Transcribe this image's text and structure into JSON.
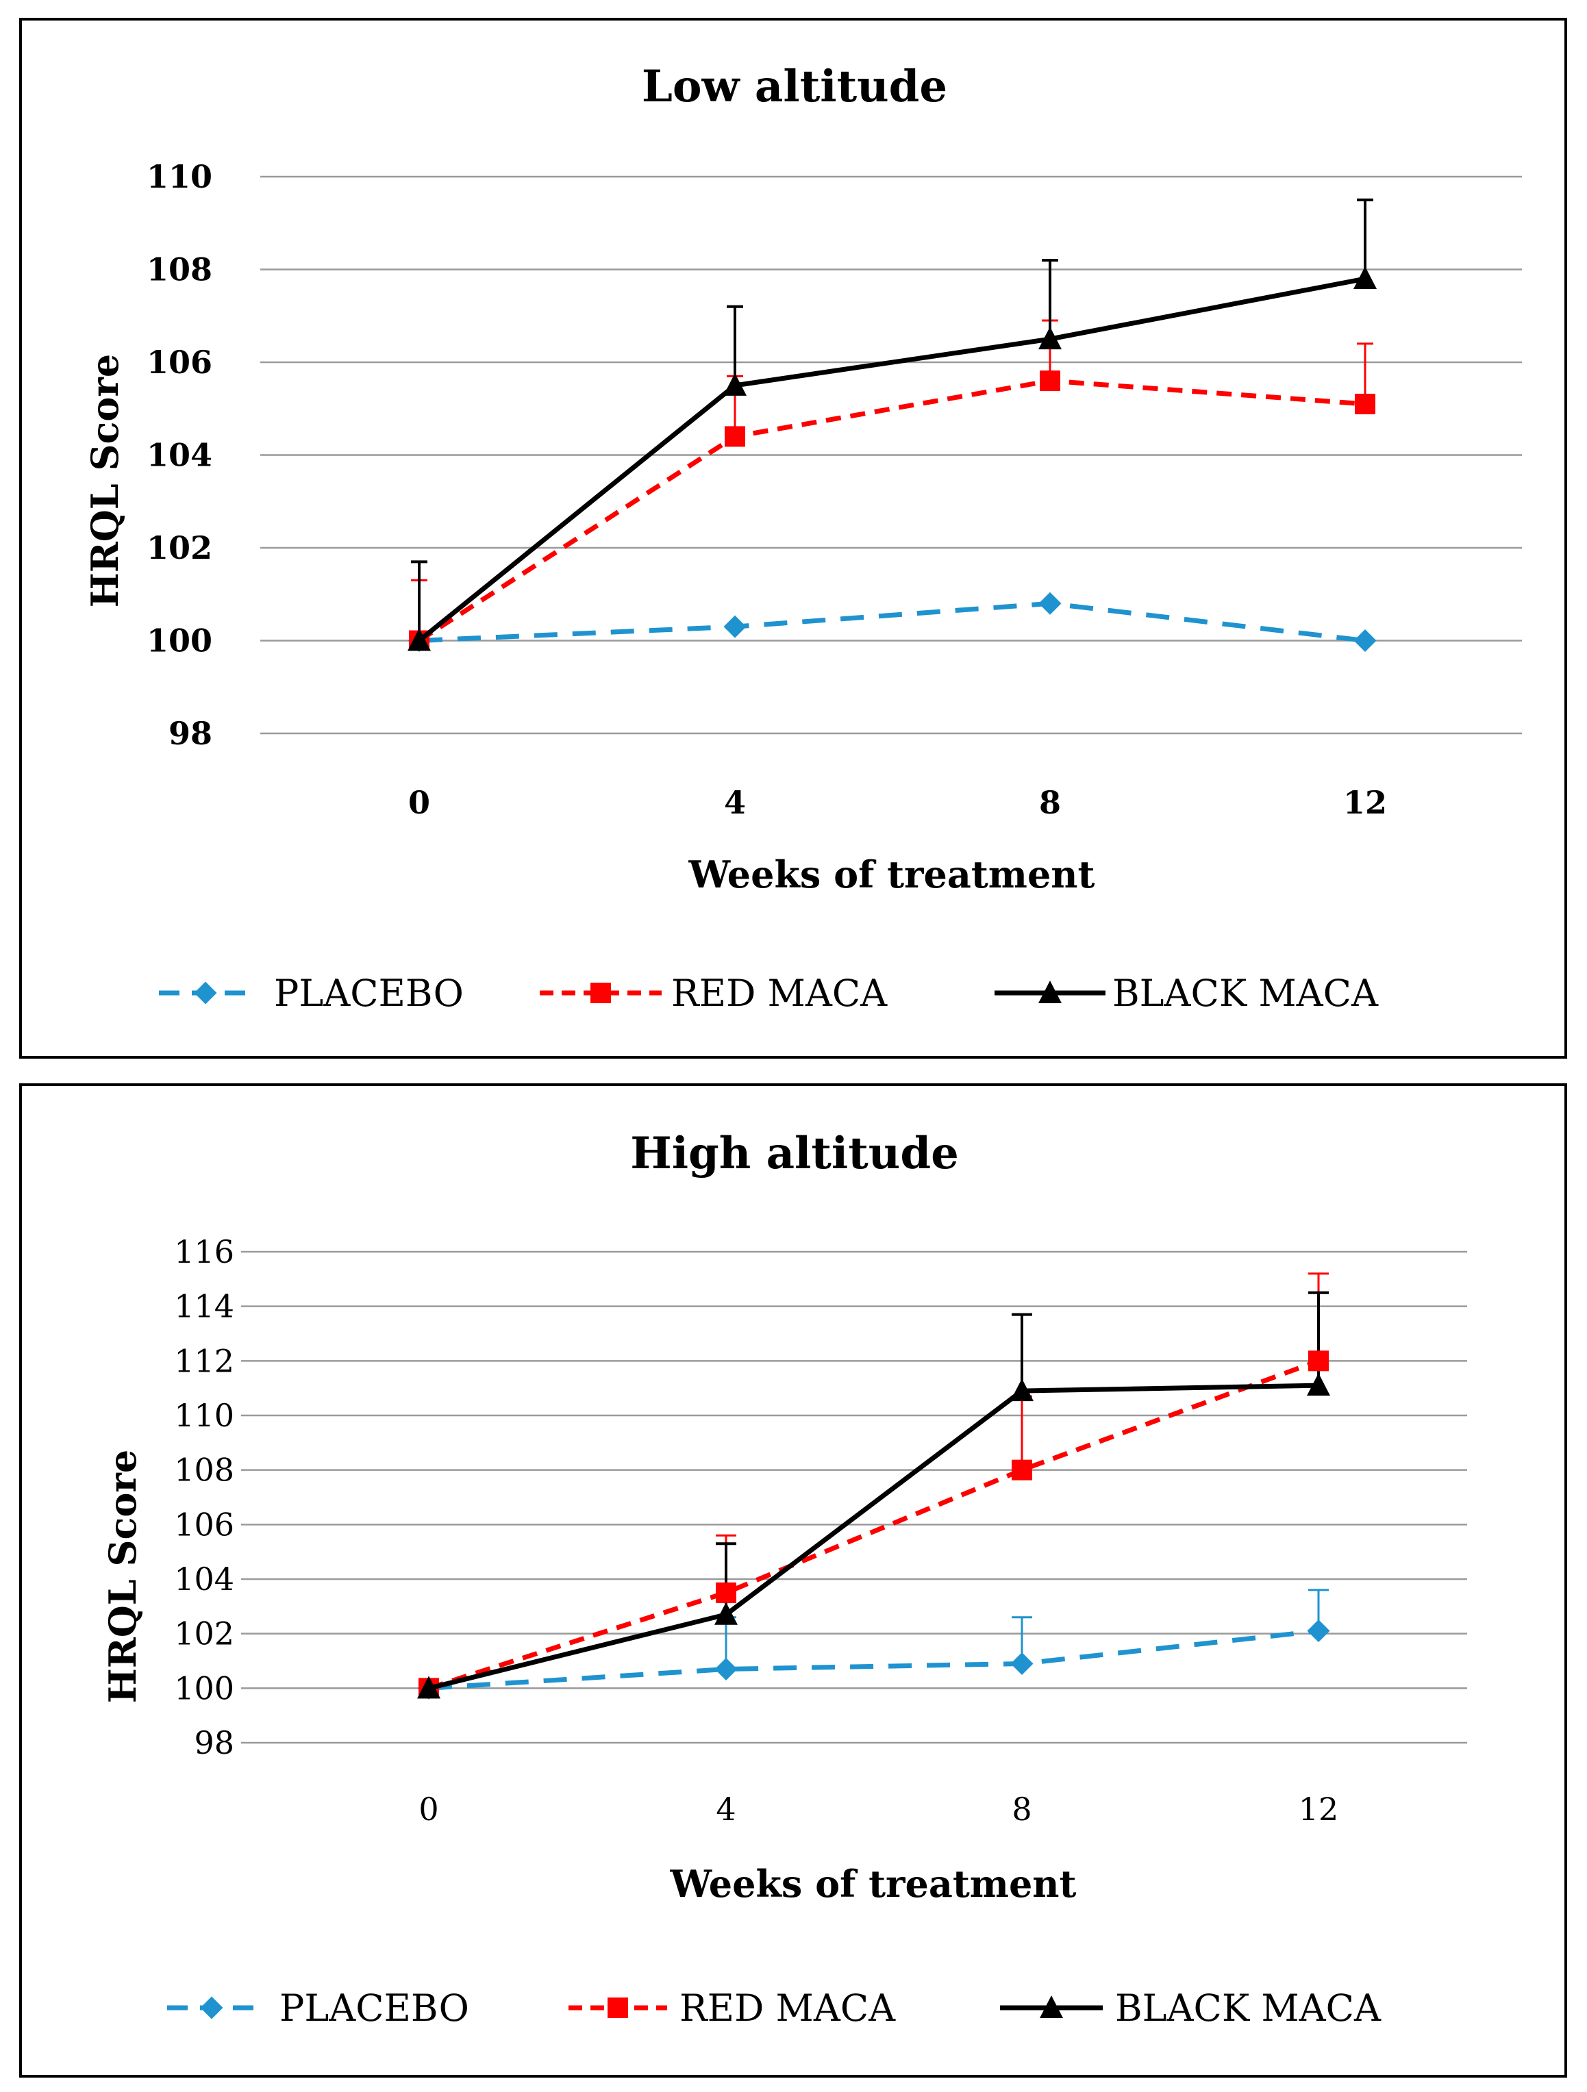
{
  "chart_data": [
    {
      "type": "line",
      "title": "Low altitude",
      "xlabel": "Weeks of treatment",
      "ylabel": "HRQL Score",
      "categories": [
        "0",
        "4",
        "8",
        "12"
      ],
      "ylim": [
        98,
        110
      ],
      "yticks": [
        98,
        100,
        102,
        104,
        106,
        108,
        110
      ],
      "grid": true,
      "legend_position": "bottom",
      "series": [
        {
          "name": "PLACEBO",
          "color": "#1f93cf",
          "marker": "diamond",
          "dash": "dashed",
          "values": [
            100,
            100.3,
            100.8,
            100
          ],
          "errors": [
            0,
            0,
            0,
            0
          ]
        },
        {
          "name": "RED MACA",
          "color": "#ff0000",
          "marker": "square",
          "dash": "dashed",
          "values": [
            100,
            104.4,
            105.6,
            105.1
          ],
          "errors": [
            1.3,
            1.3,
            1.3,
            1.3
          ]
        },
        {
          "name": "BLACK MACA",
          "color": "#000000",
          "marker": "triangle",
          "dash": "solid",
          "values": [
            100,
            105.5,
            106.5,
            107.8
          ],
          "errors": [
            1.7,
            1.7,
            1.7,
            1.7
          ]
        }
      ]
    },
    {
      "type": "line",
      "title": "High altitude",
      "xlabel": "Weeks of treatment",
      "ylabel": "HRQL Score",
      "categories": [
        "0",
        "4",
        "8",
        "12"
      ],
      "ylim": [
        98,
        116
      ],
      "yticks": [
        98,
        100,
        102,
        104,
        106,
        108,
        110,
        112,
        114,
        116
      ],
      "grid": true,
      "legend_position": "bottom",
      "series": [
        {
          "name": "PLACEBO",
          "color": "#1f93cf",
          "marker": "diamond",
          "dash": "dashed",
          "values": [
            100,
            100.7,
            100.9,
            102.1
          ],
          "errors": [
            0,
            1.9,
            1.7,
            1.5
          ]
        },
        {
          "name": "RED MACA",
          "color": "#ff0000",
          "marker": "square",
          "dash": "dashed",
          "values": [
            100,
            103.5,
            108,
            112
          ],
          "errors": [
            0,
            2.1,
            2.7,
            3.2
          ]
        },
        {
          "name": "BLACK MACA",
          "color": "#000000",
          "marker": "triangle",
          "dash": "solid",
          "values": [
            100,
            102.7,
            110.9,
            111.1
          ],
          "errors": [
            0,
            2.6,
            2.8,
            3.4
          ]
        }
      ]
    }
  ]
}
